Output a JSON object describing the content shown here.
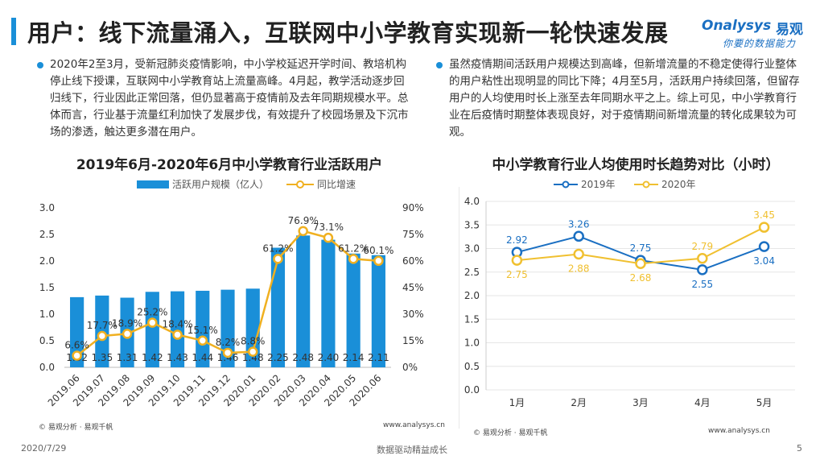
{
  "title": "用户：线下流量涌入，互联网中小学教育实现新一轮快速发展",
  "logo": {
    "en": "nalysys",
    "en_prefix": "O",
    "cn": "易观",
    "slogan": "你要的数据能力"
  },
  "bullets": {
    "left": "2020年2至3月，受新冠肺炎疫情影响，中小学校延迟开学时间、教培机构停止线下授课，互联网中小学教育站上流量高峰。4月起，教学活动逐步回归线下，行业因此正常回落，但仍显著高于疫情前及去年同期规模水平。总体而言，行业基于流量红利加快了发展步伐，有效提升了校园场景及下沉市场的渗透，触达更多潜在用户。",
    "right": "虽然疫情期间活跃用户规模达到高峰，但新增流量的不稳定使得行业整体的用户粘性出现明显的同比下降；4月至5月，活跃用户持续回落，但留存用户的人均使用时长上涨至去年同期水平之上。综上可见，中小学教育行业在后疫情时期整体表现良好，对于疫情期间新增流量的转化成果较为可观。"
  },
  "chart_data": [
    {
      "type": "bar",
      "title": "2019年6月-2020年6月中小学教育行业活跃用户",
      "categories": [
        "2019.06",
        "2019.07",
        "2019.08",
        "2019.09",
        "2019.10",
        "2019.11",
        "2019.12",
        "2020.01",
        "2020.02",
        "2020.03",
        "2020.04",
        "2020.05",
        "2020.06"
      ],
      "series": [
        {
          "name": "活跃用户规模（亿人）",
          "type": "bar",
          "axis": "left",
          "color": "#1a8fd8",
          "values": [
            1.32,
            1.35,
            1.31,
            1.42,
            1.43,
            1.44,
            1.46,
            1.48,
            2.25,
            2.48,
            2.4,
            2.14,
            2.11
          ]
        },
        {
          "name": "同比增速",
          "type": "line",
          "axis": "right",
          "color": "#f0b020",
          "values": [
            6.6,
            17.7,
            18.9,
            25.2,
            18.4,
            15.1,
            8.2,
            8.8,
            61.2,
            76.9,
            73.1,
            61.2,
            60.1
          ]
        }
      ],
      "yleft_ticks": [
        "0.0",
        "0.5",
        "1.0",
        "1.5",
        "2.0",
        "2.5",
        "3.0"
      ],
      "yright_ticks": [
        "0%",
        "15%",
        "30%",
        "45%",
        "60%",
        "75%",
        "90%"
      ],
      "ylim_left": [
        0,
        3.0
      ],
      "ylim_right": [
        0,
        90
      ],
      "bar_labels": [
        "1.32",
        "1.35",
        "1.31",
        "1.42",
        "1.43",
        "1.44",
        "1.46",
        "1.48",
        "2.25",
        "2.48",
        "2.40",
        "2.14",
        "2.11"
      ],
      "line_labels": [
        "6.6%",
        "17.7%",
        "18.9%",
        "25.2%",
        "18.4%",
        "15.1%",
        "8.2%",
        "8.8%",
        "61.2%",
        "76.9%",
        "73.1%",
        "61.2%",
        "60.1%"
      ],
      "source": "© 易观分析 · 易观千帆",
      "site": "www.analysys.cn"
    },
    {
      "type": "line",
      "title": "中小学教育行业人均使用时长趋势对比（小时）",
      "categories": [
        "1月",
        "2月",
        "3月",
        "4月",
        "5月"
      ],
      "series": [
        {
          "name": "2019年",
          "color": "#1a6fc2",
          "values": [
            2.92,
            3.26,
            2.75,
            2.55,
            3.04
          ]
        },
        {
          "name": "2020年",
          "color": "#f0c030",
          "values": [
            2.75,
            2.88,
            2.68,
            2.79,
            3.45
          ]
        }
      ],
      "labels_2019": [
        "2.92",
        "3.26",
        "2.75",
        "2.55",
        "3.04"
      ],
      "labels_2020": [
        "2.75",
        "2.88",
        "2.68",
        "2.79",
        "3.45"
      ],
      "y_ticks": [
        "0.0",
        "0.5",
        "1.0",
        "1.5",
        "2.0",
        "2.5",
        "3.0",
        "3.5",
        "4.0"
      ],
      "ylim": [
        0,
        4.0
      ],
      "grid": true,
      "source": "© 易观分析 · 易观千帆",
      "site": "www.analysys.cn"
    }
  ],
  "footer": {
    "date": "2020/7/29",
    "slogan": "数据驱动精益成长",
    "page": "5"
  }
}
